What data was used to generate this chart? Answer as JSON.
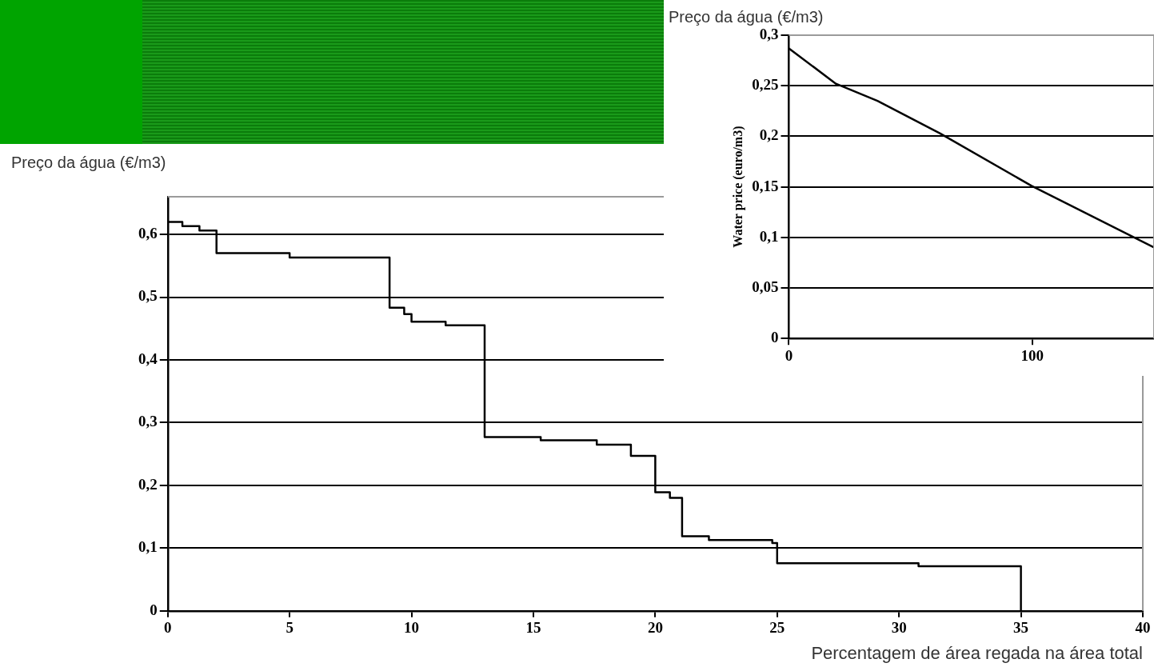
{
  "chart_data": [
    {
      "type": "step",
      "xlabel": "Percentagem de área regada na área total",
      "annotations": [
        "Preço da água (€/m3)"
      ],
      "x": [
        0,
        0.6,
        1.3,
        2,
        5,
        9.1,
        9.7,
        10,
        11.4,
        13,
        15.3,
        17.6,
        19,
        20,
        20.6,
        21.1,
        22.2,
        24.8,
        25,
        30.8,
        35
      ],
      "series": [
        {
          "color": "#000000",
          "values": [
            0.62,
            0.613,
            0.606,
            0.57,
            0.563,
            0.483,
            0.473,
            0.461,
            0.455,
            0.277,
            0.272,
            0.265,
            0.247,
            0.189,
            0.18,
            0.119,
            0.113,
            0.108,
            0.076,
            0.071,
            0
          ]
        }
      ],
      "xlim": [
        0,
        40
      ],
      "xticks": [
        0,
        5,
        10,
        15,
        20,
        25,
        30,
        35,
        40
      ],
      "ylim": [
        0,
        0.66
      ],
      "yticks": [
        {
          "value": 0,
          "label": "0"
        },
        {
          "value": 0.1,
          "label": "0,1"
        },
        {
          "value": 0.2,
          "label": "0,2"
        },
        {
          "value": 0.3,
          "label": "0,3"
        },
        {
          "value": 0.4,
          "label": "0,4"
        },
        {
          "value": 0.5,
          "label": "0,5"
        },
        {
          "value": 0.6,
          "label": "0,6"
        }
      ],
      "grid": "y",
      "legend": false
    },
    {
      "type": "line",
      "ylabel": "Water price (euro/m3)",
      "annotations": [
        "Preço da água (€/m3)"
      ],
      "x": [
        0,
        19.3,
        36.4,
        62,
        99.7,
        150
      ],
      "series": [
        {
          "color": "#000000",
          "values": [
            0.287,
            0.252,
            0.235,
            0.203,
            0.151,
            0.09
          ]
        }
      ],
      "xlim": [
        0,
        150
      ],
      "xticks": [
        0,
        100
      ],
      "ylim": [
        0,
        0.3
      ],
      "yticks": [
        {
          "value": 0,
          "label": "0"
        },
        {
          "value": 0.05,
          "label": "0,05"
        },
        {
          "value": 0.1,
          "label": "0,1"
        },
        {
          "value": 0.15,
          "label": "0,15"
        },
        {
          "value": 0.2,
          "label": "0,2"
        },
        {
          "value": 0.25,
          "label": "0,25"
        },
        {
          "value": 0.3,
          "label": "0,3"
        }
      ],
      "grid": "y",
      "legend": false
    }
  ]
}
